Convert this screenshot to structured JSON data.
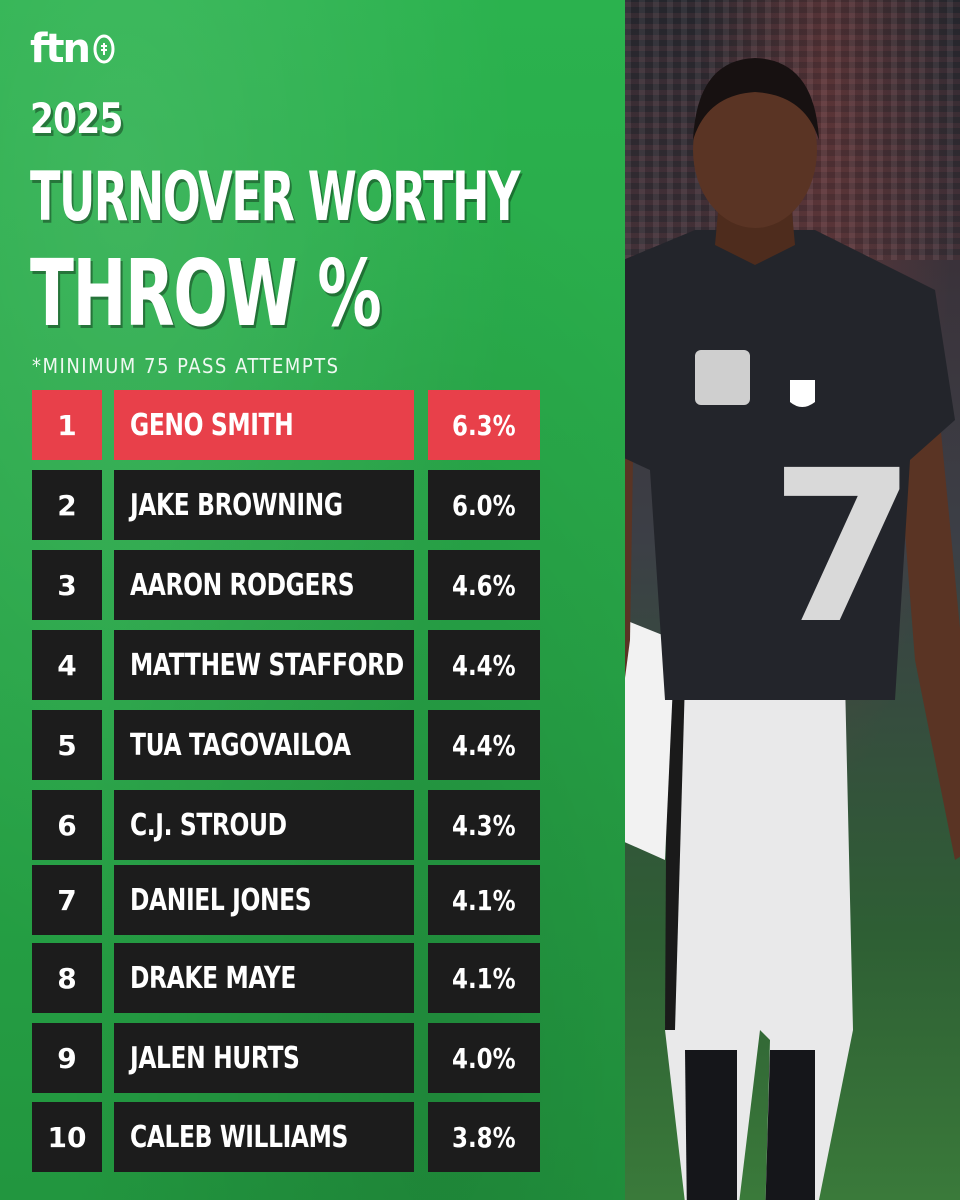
{
  "brand": {
    "logo_text": "ftn"
  },
  "header": {
    "year": "2025",
    "title_line1": "TURNOVER WORTHY",
    "title_line2": "THROW %",
    "note": "*MINIMUM 75 PASS ATTEMPTS"
  },
  "colors": {
    "background_green": "#2aa84a",
    "row_dark": "#1c1c1c",
    "row_highlight": "#e8404a",
    "text": "#ffffff"
  },
  "rankings": [
    {
      "rank": "1",
      "name": "GENO SMITH",
      "value": "6.3%"
    },
    {
      "rank": "2",
      "name": "JAKE BROWNING",
      "value": "6.0%"
    },
    {
      "rank": "3",
      "name": "AARON RODGERS",
      "value": "4.6%"
    },
    {
      "rank": "4",
      "name": "MATTHEW STAFFORD",
      "value": "4.4%"
    },
    {
      "rank": "5",
      "name": "TUA TAGOVAILOA",
      "value": "4.4%"
    },
    {
      "rank": "6",
      "name": "C.J. STROUD",
      "value": "4.3%"
    },
    {
      "rank": "7",
      "name": "DANIEL JONES",
      "value": "4.1%"
    },
    {
      "rank": "8",
      "name": "DRAKE MAYE",
      "value": "4.1%"
    },
    {
      "rank": "9",
      "name": "JALEN HURTS",
      "value": "4.0%"
    },
    {
      "rank": "10",
      "name": "CALEB WILLIAMS",
      "value": "3.8%"
    }
  ],
  "photo": {
    "jersey_number": "7"
  }
}
